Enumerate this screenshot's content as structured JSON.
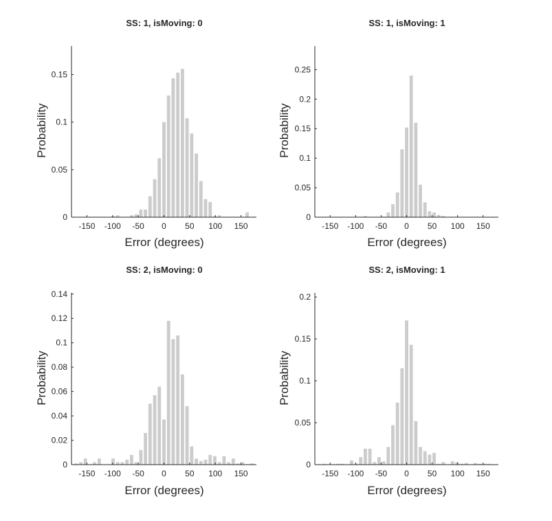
{
  "figure": {
    "background": "#ffffff",
    "bar_color": "#cccccc",
    "axis_color": "#262626"
  },
  "chart_data": [
    {
      "type": "bar",
      "title": "SS: 1, isMoving: 0",
      "xlabel": "Error (degrees)",
      "ylabel": "Probability",
      "xlim": [
        -180,
        180
      ],
      "ylim": [
        0,
        0.18
      ],
      "xticks": [
        -150,
        -100,
        -50,
        0,
        50,
        100,
        150
      ],
      "yticks": [
        0,
        0.05,
        0.1,
        0.15
      ],
      "ytick_labels": [
        "0",
        "0.05",
        "0.1",
        "0.15"
      ],
      "grid": false,
      "bin_width": 9,
      "x": [
        -171,
        -162,
        -153,
        -144,
        -135,
        -126,
        -117,
        -108,
        -99,
        -90,
        -81,
        -72,
        -63,
        -54,
        -45,
        -36,
        -27,
        -18,
        -9,
        0,
        9,
        18,
        27,
        36,
        45,
        54,
        63,
        72,
        81,
        90,
        99,
        108,
        117,
        126,
        135,
        144,
        153,
        162,
        171
      ],
      "values": [
        0,
        0,
        0,
        0,
        0,
        0,
        0,
        0,
        0.001,
        0.002,
        0,
        0,
        0.002,
        0.003,
        0.008,
        0.008,
        0.022,
        0.04,
        0.062,
        0.1,
        0.128,
        0.146,
        0.152,
        0.156,
        0.104,
        0.088,
        0.067,
        0.038,
        0.019,
        0.016,
        0.001,
        0.002,
        0,
        0,
        0,
        0,
        0,
        0.005,
        0
      ]
    },
    {
      "type": "bar",
      "title": "SS: 1, isMoving: 1",
      "xlabel": "Error (degrees)",
      "ylabel": "Probability",
      "xlim": [
        -180,
        180
      ],
      "ylim": [
        0,
        0.29
      ],
      "xticks": [
        -150,
        -100,
        -50,
        0,
        50,
        100,
        150
      ],
      "yticks": [
        0,
        0.05,
        0.1,
        0.15,
        0.2,
        0.25
      ],
      "ytick_labels": [
        "0",
        "0.05",
        "0.1",
        "0.15",
        "0.2",
        "0.25"
      ],
      "grid": false,
      "bin_width": 9,
      "x": [
        -171,
        -162,
        -153,
        -144,
        -135,
        -126,
        -117,
        -108,
        -99,
        -90,
        -81,
        -72,
        -63,
        -54,
        -45,
        -36,
        -27,
        -18,
        -9,
        0,
        9,
        18,
        27,
        36,
        45,
        54,
        63,
        72,
        81,
        90,
        99,
        108,
        117,
        126,
        135,
        144,
        153,
        162,
        171
      ],
      "values": [
        0,
        0,
        0,
        0,
        0,
        0,
        0,
        0,
        0,
        0,
        0.002,
        0,
        0,
        0,
        0.001,
        0.008,
        0.022,
        0.042,
        0.115,
        0.152,
        0.24,
        0.16,
        0.055,
        0.025,
        0.01,
        0.008,
        0.004,
        0.002,
        0,
        0,
        0,
        0,
        0,
        0,
        0,
        0,
        0,
        0,
        0
      ]
    },
    {
      "type": "bar",
      "title": "SS: 2, isMoving: 0",
      "xlabel": "Error (degrees)",
      "ylabel": "Probability",
      "xlim": [
        -180,
        180
      ],
      "ylim": [
        0,
        0.141
      ],
      "xticks": [
        -150,
        -100,
        -50,
        0,
        50,
        100,
        150
      ],
      "yticks": [
        0,
        0.02,
        0.04,
        0.06,
        0.08,
        0.1,
        0.12,
        0.14
      ],
      "ytick_labels": [
        "0",
        "0.02",
        "0.04",
        "0.06",
        "0.08",
        "0.1",
        "0.12",
        "0.14"
      ],
      "grid": false,
      "bin_width": 9,
      "x": [
        -171,
        -162,
        -153,
        -144,
        -135,
        -126,
        -117,
        -108,
        -99,
        -90,
        -81,
        -72,
        -63,
        -54,
        -45,
        -36,
        -27,
        -18,
        -9,
        0,
        9,
        18,
        27,
        36,
        45,
        54,
        63,
        72,
        81,
        90,
        99,
        108,
        117,
        126,
        135,
        144,
        153,
        162,
        171
      ],
      "values": [
        0.001,
        0.002,
        0.005,
        0,
        0.002,
        0.005,
        0,
        0,
        0.005,
        0.002,
        0.002,
        0.004,
        0.008,
        0.002,
        0.012,
        0.026,
        0.05,
        0.057,
        0.064,
        0.037,
        0.118,
        0.103,
        0.106,
        0.074,
        0.048,
        0.015,
        0.005,
        0.003,
        0.004,
        0.008,
        0.007,
        0.002,
        0.007,
        0.002,
        0.005,
        0.001,
        0.002,
        0,
        0.001
      ]
    },
    {
      "type": "bar",
      "title": "SS: 2, isMoving: 1",
      "xlabel": "Error (degrees)",
      "ylabel": "Probability",
      "xlim": [
        -180,
        180
      ],
      "ylim": [
        0,
        0.205
      ],
      "xticks": [
        -150,
        -100,
        -50,
        0,
        50,
        100,
        150
      ],
      "yticks": [
        0,
        0.05,
        0.1,
        0.15,
        0.2
      ],
      "ytick_labels": [
        "0",
        "0.05",
        "0.1",
        "0.15",
        "0.2"
      ],
      "grid": false,
      "bin_width": 9,
      "x": [
        -171,
        -162,
        -153,
        -144,
        -135,
        -126,
        -117,
        -108,
        -99,
        -90,
        -81,
        -72,
        -63,
        -54,
        -45,
        -36,
        -27,
        -18,
        -9,
        0,
        9,
        18,
        27,
        36,
        45,
        54,
        63,
        72,
        81,
        90,
        99,
        108,
        117,
        126,
        135,
        144,
        153,
        162,
        171
      ],
      "values": [
        0,
        0.001,
        0,
        0,
        0.001,
        0.001,
        0,
        0.005,
        0.001,
        0.009,
        0.019,
        0.019,
        0.003,
        0.009,
        0.004,
        0.021,
        0.047,
        0.074,
        0.115,
        0.172,
        0.143,
        0.052,
        0.021,
        0.016,
        0.012,
        0.014,
        0.001,
        0.003,
        0,
        0.004,
        0.003,
        0.001,
        0.002,
        0,
        0.002,
        0.001,
        0.001,
        0.001,
        0
      ]
    }
  ]
}
